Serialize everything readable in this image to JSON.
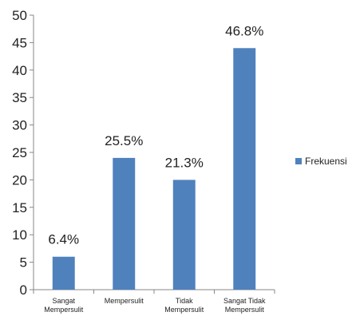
{
  "chart_data": {
    "type": "bar",
    "categories": [
      [
        "Sangat",
        "Mempersulit"
      ],
      [
        "Mempersulit"
      ],
      [
        "Tidak",
        "Mempersulit"
      ],
      [
        "Sangat Tidak",
        "Mempersulit"
      ]
    ],
    "series": [
      {
        "name": "Frekuensi",
        "values": [
          6,
          24,
          20,
          44
        ],
        "data_labels": [
          "6.4%",
          "25.5%",
          "21.3%",
          "46.8%"
        ],
        "color": "#4F81BD"
      }
    ],
    "ylim": [
      0,
      50
    ],
    "yticks": [
      "0",
      "5",
      "10",
      "15",
      "20",
      "25",
      "30",
      "35",
      "40",
      "45",
      "50"
    ],
    "grid": false,
    "legend_position": "right"
  }
}
